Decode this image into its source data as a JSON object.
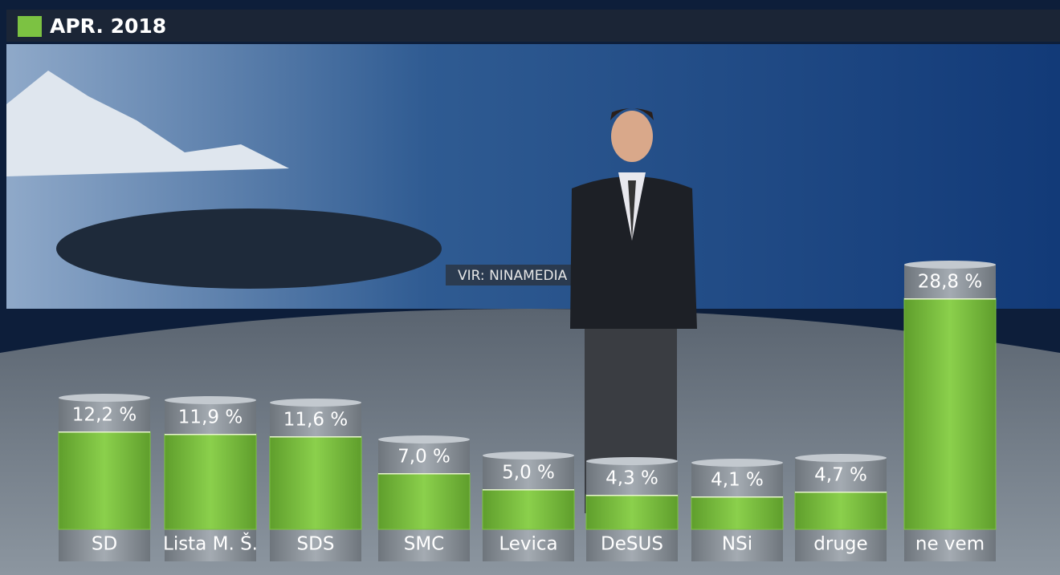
{
  "chart_data": {
    "type": "bar",
    "source": "VIR: NINAMEDIA",
    "categories": [
      "SD",
      "Lista M. Š.",
      "SDS",
      "SMC",
      "Levica",
      "DeSUS",
      "NSi",
      "druge",
      "ne vem"
    ],
    "series": [
      {
        "name": "APR. 2018",
        "color": "#7cc242",
        "values": [
          12.2,
          11.9,
          11.6,
          7.0,
          5.0,
          4.3,
          4.1,
          4.7,
          28.8
        ],
        "value_labels": [
          "12,2 %",
          "11,9 %",
          "11,6 %",
          "7,0 %",
          "5,0 %",
          "4,3 %",
          "4,1 %",
          "4,7 %",
          "28,8 %"
        ]
      }
    ],
    "legend": "top-left"
  }
}
